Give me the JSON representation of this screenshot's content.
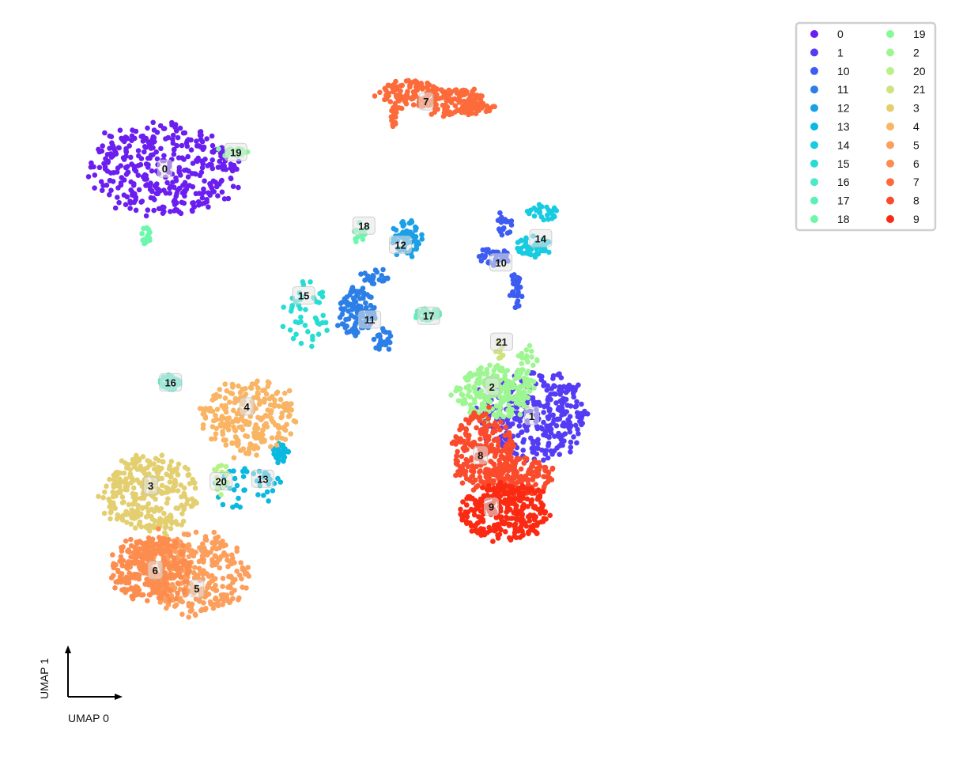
{
  "chart_data": {
    "type": "scatter",
    "title": "",
    "xlabel": "UMAP 0",
    "ylabel": "UMAP 1",
    "xlim": [
      0,
      100
    ],
    "ylim": [
      0,
      100
    ],
    "grid": false,
    "legend_placement": "top-right",
    "legend_columns": 2,
    "legend_order": [
      "0",
      "1",
      "10",
      "11",
      "12",
      "13",
      "14",
      "15",
      "16",
      "17",
      "18",
      "19",
      "2",
      "20",
      "21",
      "3",
      "4",
      "5",
      "6",
      "7",
      "8",
      "9"
    ],
    "point_count_note": "",
    "clusters": [
      {
        "name": "0",
        "color": "#6a1ef0",
        "label_pos": [
          14.0,
          84.4
        ],
        "blobs": [
          {
            "cx": 14.0,
            "cy": 84.4,
            "rx": 12.5,
            "ry": 7.8,
            "n": 380
          }
        ]
      },
      {
        "name": "1",
        "color": "#543cf5",
        "label_pos": [
          71.3,
          45.4
        ],
        "blobs": [
          {
            "cx": 71.5,
            "cy": 45.6,
            "rx": 9.0,
            "ry": 7.5,
            "n": 330
          }
        ]
      },
      {
        "name": "10",
        "color": "#3d5cf2",
        "label_pos": [
          66.5,
          69.6
        ],
        "blobs": [
          {
            "cx": 67.0,
            "cy": 76.0,
            "rx": 1.2,
            "ry": 3.5,
            "n": 20
          },
          {
            "cx": 65.5,
            "cy": 70.5,
            "rx": 2.8,
            "ry": 1.6,
            "n": 35
          },
          {
            "cx": 68.8,
            "cy": 65.0,
            "rx": 1.3,
            "ry": 3.0,
            "n": 30
          }
        ]
      },
      {
        "name": "11",
        "color": "#2c7fe6",
        "label_pos": [
          46.0,
          60.6
        ],
        "blobs": [
          {
            "cx": 44.0,
            "cy": 61.8,
            "rx": 3.2,
            "ry": 4.2,
            "n": 110
          },
          {
            "cx": 47.0,
            "cy": 67.3,
            "rx": 3.0,
            "ry": 1.2,
            "n": 25
          },
          {
            "cx": 48.0,
            "cy": 57.5,
            "rx": 1.6,
            "ry": 2.0,
            "n": 25
          }
        ]
      },
      {
        "name": "12",
        "color": "#1ba0e6",
        "label_pos": [
          50.8,
          72.4
        ],
        "blobs": [
          {
            "cx": 51.8,
            "cy": 73.5,
            "rx": 2.6,
            "ry": 3.2,
            "n": 65
          }
        ]
      },
      {
        "name": "13",
        "color": "#0bb8e0",
        "label_pos": [
          29.3,
          35.5
        ],
        "blobs": [
          {
            "cx": 26.5,
            "cy": 34.0,
            "rx": 6.0,
            "ry": 3.6,
            "n": 45
          },
          {
            "cx": 32.0,
            "cy": 39.5,
            "rx": 1.6,
            "ry": 1.6,
            "n": 30
          }
        ]
      },
      {
        "name": "14",
        "color": "#19cbe0",
        "label_pos": [
          72.7,
          73.4
        ],
        "blobs": [
          {
            "cx": 73.0,
            "cy": 77.5,
            "rx": 2.6,
            "ry": 1.5,
            "n": 25
          },
          {
            "cx": 71.5,
            "cy": 72.0,
            "rx": 3.0,
            "ry": 2.0,
            "n": 45
          }
        ]
      },
      {
        "name": "15",
        "color": "#27ddd3",
        "label_pos": [
          35.7,
          64.4
        ],
        "blobs": [
          {
            "cx": 35.7,
            "cy": 61.3,
            "rx": 4.2,
            "ry": 6.0,
            "n": 45
          }
        ]
      },
      {
        "name": "16",
        "color": "#4ee8c9",
        "label_pos": [
          14.9,
          50.7
        ],
        "blobs": [
          {
            "cx": 14.9,
            "cy": 50.7,
            "rx": 1.8,
            "ry": 1.3,
            "n": 40
          }
        ]
      },
      {
        "name": "17",
        "color": "#5cf0b8",
        "label_pos": [
          55.2,
          61.2
        ],
        "blobs": [
          {
            "cx": 54.8,
            "cy": 61.4,
            "rx": 2.4,
            "ry": 1.0,
            "n": 35
          }
        ]
      },
      {
        "name": "18",
        "color": "#6df7ad",
        "label_pos": [
          45.1,
          75.4
        ],
        "blobs": [
          {
            "cx": 44.4,
            "cy": 74.5,
            "rx": 1.4,
            "ry": 2.0,
            "n": 15
          },
          {
            "cx": 11.1,
            "cy": 73.8,
            "rx": 0.9,
            "ry": 1.6,
            "n": 18
          }
        ]
      },
      {
        "name": "19",
        "color": "#86f99b",
        "label_pos": [
          25.1,
          87.0
        ],
        "blobs": [
          {
            "cx": 24.5,
            "cy": 87.0,
            "rx": 2.6,
            "ry": 0.8,
            "n": 22
          }
        ]
      },
      {
        "name": "2",
        "color": "#9ef692",
        "label_pos": [
          65.1,
          50.0
        ],
        "blobs": [
          {
            "cx": 65.6,
            "cy": 49.0,
            "rx": 6.6,
            "ry": 4.6,
            "n": 230
          },
          {
            "cx": 70.5,
            "cy": 54.0,
            "rx": 1.8,
            "ry": 2.6,
            "n": 20
          }
        ]
      },
      {
        "name": "20",
        "color": "#b6f285",
        "label_pos": [
          22.8,
          35.1
        ],
        "blobs": [
          {
            "cx": 22.8,
            "cy": 35.5,
            "rx": 1.5,
            "ry": 3.0,
            "n": 16
          }
        ]
      },
      {
        "name": "21",
        "color": "#cee37e",
        "label_pos": [
          66.6,
          57.1
        ],
        "blobs": [
          {
            "cx": 66.4,
            "cy": 56.0,
            "rx": 1.1,
            "ry": 1.6,
            "n": 12
          }
        ]
      },
      {
        "name": "3",
        "color": "#e3cf70",
        "label_pos": [
          11.8,
          34.4
        ],
        "blobs": [
          {
            "cx": 11.8,
            "cy": 33.0,
            "rx": 8.6,
            "ry": 6.6,
            "n": 280
          }
        ]
      },
      {
        "name": "4",
        "color": "#f9b464",
        "label_pos": [
          26.8,
          46.9
        ],
        "blobs": [
          {
            "cx": 27.0,
            "cy": 45.3,
            "rx": 8.0,
            "ry": 6.4,
            "n": 240
          }
        ]
      },
      {
        "name": "5",
        "color": "#fc9f5c",
        "label_pos": [
          19.0,
          18.2
        ],
        "blobs": [
          {
            "cx": 19.0,
            "cy": 20.5,
            "rx": 8.8,
            "ry": 7.0,
            "n": 320
          }
        ]
      },
      {
        "name": "6",
        "color": "#fd8d4f",
        "label_pos": [
          12.5,
          21.1
        ],
        "blobs": [
          {
            "cx": 11.8,
            "cy": 21.3,
            "rx": 6.8,
            "ry": 6.0,
            "n": 300
          }
        ]
      },
      {
        "name": "7",
        "color": "#fd6b3b",
        "label_pos": [
          54.8,
          95.0
        ],
        "blobs": [
          {
            "cx": 52.5,
            "cy": 96.2,
            "rx": 6.0,
            "ry": 2.2,
            "n": 110
          },
          {
            "cx": 59.0,
            "cy": 95.0,
            "rx": 5.5,
            "ry": 2.4,
            "n": 120
          },
          {
            "cx": 50.2,
            "cy": 92.5,
            "rx": 1.0,
            "ry": 2.0,
            "n": 20
          },
          {
            "cx": 62.5,
            "cy": 93.8,
            "rx": 3.5,
            "ry": 1.0,
            "n": 30
          }
        ]
      },
      {
        "name": "8",
        "color": "#fb4b2d",
        "label_pos": [
          63.3,
          39.2
        ],
        "blobs": [
          {
            "cx": 63.5,
            "cy": 40.0,
            "rx": 5.0,
            "ry": 6.8,
            "n": 230
          },
          {
            "cx": 69.0,
            "cy": 36.0,
            "rx": 6.0,
            "ry": 3.4,
            "n": 170
          }
        ]
      },
      {
        "name": "9",
        "color": "#fb2a12",
        "label_pos": [
          65.0,
          31.1
        ],
        "blobs": [
          {
            "cx": 67.0,
            "cy": 30.3,
            "rx": 7.6,
            "ry": 5.0,
            "n": 300
          }
        ]
      }
    ]
  }
}
